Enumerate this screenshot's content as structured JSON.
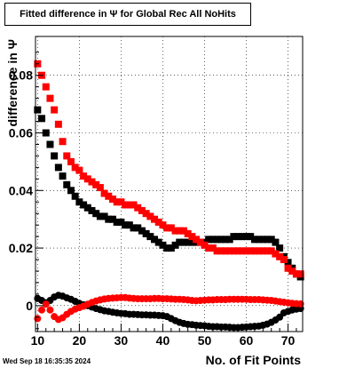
{
  "chart_data": {
    "type": "scatter",
    "title": "Fitted difference in Ψ for Global Rec All NoHits",
    "xlabel": "No. of Fit Points",
    "ylabel": "difference in Ψ",
    "xlim": [
      9.5,
      73.5
    ],
    "ylim": [
      -0.009,
      0.0935
    ],
    "x_ticks": [
      10,
      20,
      30,
      40,
      50,
      60,
      70
    ],
    "x_tick_labels": [
      "10",
      "20",
      "30",
      "40",
      "50",
      "60",
      "70"
    ],
    "y_ticks": [
      0,
      0.02,
      0.04,
      0.06,
      0.08
    ],
    "y_tick_labels": [
      "0",
      "0.02",
      "0.04",
      "0.06",
      "0.08"
    ],
    "grid": true,
    "x": [
      10,
      11,
      12,
      13,
      14,
      15,
      16,
      17,
      18,
      19,
      20,
      21,
      22,
      23,
      24,
      25,
      26,
      27,
      28,
      29,
      30,
      31,
      32,
      33,
      34,
      35,
      36,
      37,
      38,
      39,
      40,
      41,
      42,
      43,
      44,
      45,
      46,
      47,
      48,
      49,
      50,
      51,
      52,
      53,
      54,
      55,
      56,
      57,
      58,
      59,
      60,
      61,
      62,
      63,
      64,
      65,
      66,
      67,
      68,
      69,
      70,
      71,
      72,
      73
    ],
    "series": [
      {
        "color": "#000000",
        "values": [
          0.068,
          0.065,
          0.06,
          0.056,
          0.052,
          0.048,
          0.045,
          0.042,
          0.04,
          0.038,
          0.036,
          0.035,
          0.034,
          0.033,
          0.032,
          0.031,
          0.031,
          0.03,
          0.03,
          0.029,
          0.029,
          0.028,
          0.028,
          0.027,
          0.027,
          0.026,
          0.025,
          0.024,
          0.023,
          0.022,
          0.021,
          0.02,
          0.02,
          0.021,
          0.022,
          0.022,
          0.022,
          0.022,
          0.022,
          0.022,
          0.022,
          0.023,
          0.023,
          0.023,
          0.023,
          0.023,
          0.023,
          0.024,
          0.024,
          0.024,
          0.024,
          0.024,
          0.023,
          0.023,
          0.023,
          0.023,
          0.023,
          0.022,
          0.02,
          0.017,
          0.015,
          0.013,
          0.011,
          0.01
        ]
      },
      {
        "color": "#ff0000",
        "values": [
          0.084,
          0.08,
          0.076,
          0.072,
          0.068,
          0.063,
          0.057,
          0.052,
          0.05,
          0.048,
          0.047,
          0.045,
          0.044,
          0.043,
          0.042,
          0.041,
          0.039,
          0.038,
          0.037,
          0.036,
          0.036,
          0.035,
          0.035,
          0.035,
          0.034,
          0.033,
          0.032,
          0.031,
          0.03,
          0.029,
          0.028,
          0.027,
          0.027,
          0.026,
          0.026,
          0.026,
          0.025,
          0.024,
          0.023,
          0.022,
          0.021,
          0.02,
          0.02,
          0.019,
          0.019,
          0.019,
          0.019,
          0.019,
          0.019,
          0.019,
          0.019,
          0.019,
          0.019,
          0.019,
          0.019,
          0.019,
          0.019,
          0.018,
          0.017,
          0.016,
          0.013,
          0.012,
          0.011,
          0.011
        ]
      },
      {
        "color": "#000000",
        "values": [
          0.0025,
          0.0018,
          0.001,
          0.0018,
          0.003,
          0.0036,
          0.0033,
          0.0027,
          0.0022,
          0.0015,
          0.0008,
          0.0003,
          0.0,
          -0.0005,
          -0.001,
          -0.0014,
          -0.0018,
          -0.002,
          -0.0023,
          -0.0025,
          -0.0027,
          -0.0028,
          -0.003,
          -0.003,
          -0.0031,
          -0.0032,
          -0.0032,
          -0.0033,
          -0.0033,
          -0.0034,
          -0.0035,
          -0.0038,
          -0.0045,
          -0.0052,
          -0.0058,
          -0.0062,
          -0.0065,
          -0.0066,
          -0.0068,
          -0.0069,
          -0.007,
          -0.0072,
          -0.0073,
          -0.0073,
          -0.0074,
          -0.0074,
          -0.0075,
          -0.0076,
          -0.0076,
          -0.0075,
          -0.0074,
          -0.0073,
          -0.0072,
          -0.0071,
          -0.0068,
          -0.0064,
          -0.0058,
          -0.005,
          -0.004,
          -0.0025,
          -0.002,
          -0.0015,
          -0.0012,
          -0.001
        ]
      },
      {
        "color": "#ff0000",
        "values": [
          -0.0045,
          -0.0015,
          0.0005,
          -0.0015,
          -0.0038,
          -0.0048,
          -0.0042,
          -0.003,
          -0.002,
          -0.0012,
          -0.0007,
          -0.0002,
          0.0005,
          0.0011,
          0.0016,
          0.002,
          0.0023,
          0.0025,
          0.0026,
          0.0027,
          0.0028,
          0.0028,
          0.0026,
          0.0025,
          0.0024,
          0.0024,
          0.0024,
          0.0024,
          0.0025,
          0.0025,
          0.0024,
          0.0024,
          0.0023,
          0.0022,
          0.0022,
          0.0021,
          0.002,
          0.0018,
          0.0017,
          0.0018,
          0.0019,
          0.002,
          0.002,
          0.0021,
          0.0021,
          0.0021,
          0.0022,
          0.0022,
          0.0022,
          0.0022,
          0.0022,
          0.0021,
          0.0021,
          0.0021,
          0.002,
          0.0019,
          0.0018,
          0.0016,
          0.0014,
          0.0012,
          0.001,
          0.0008,
          0.0007,
          0.0006
        ]
      }
    ]
  },
  "timestamp": "Wed Sep 18 16:35:35 2024"
}
